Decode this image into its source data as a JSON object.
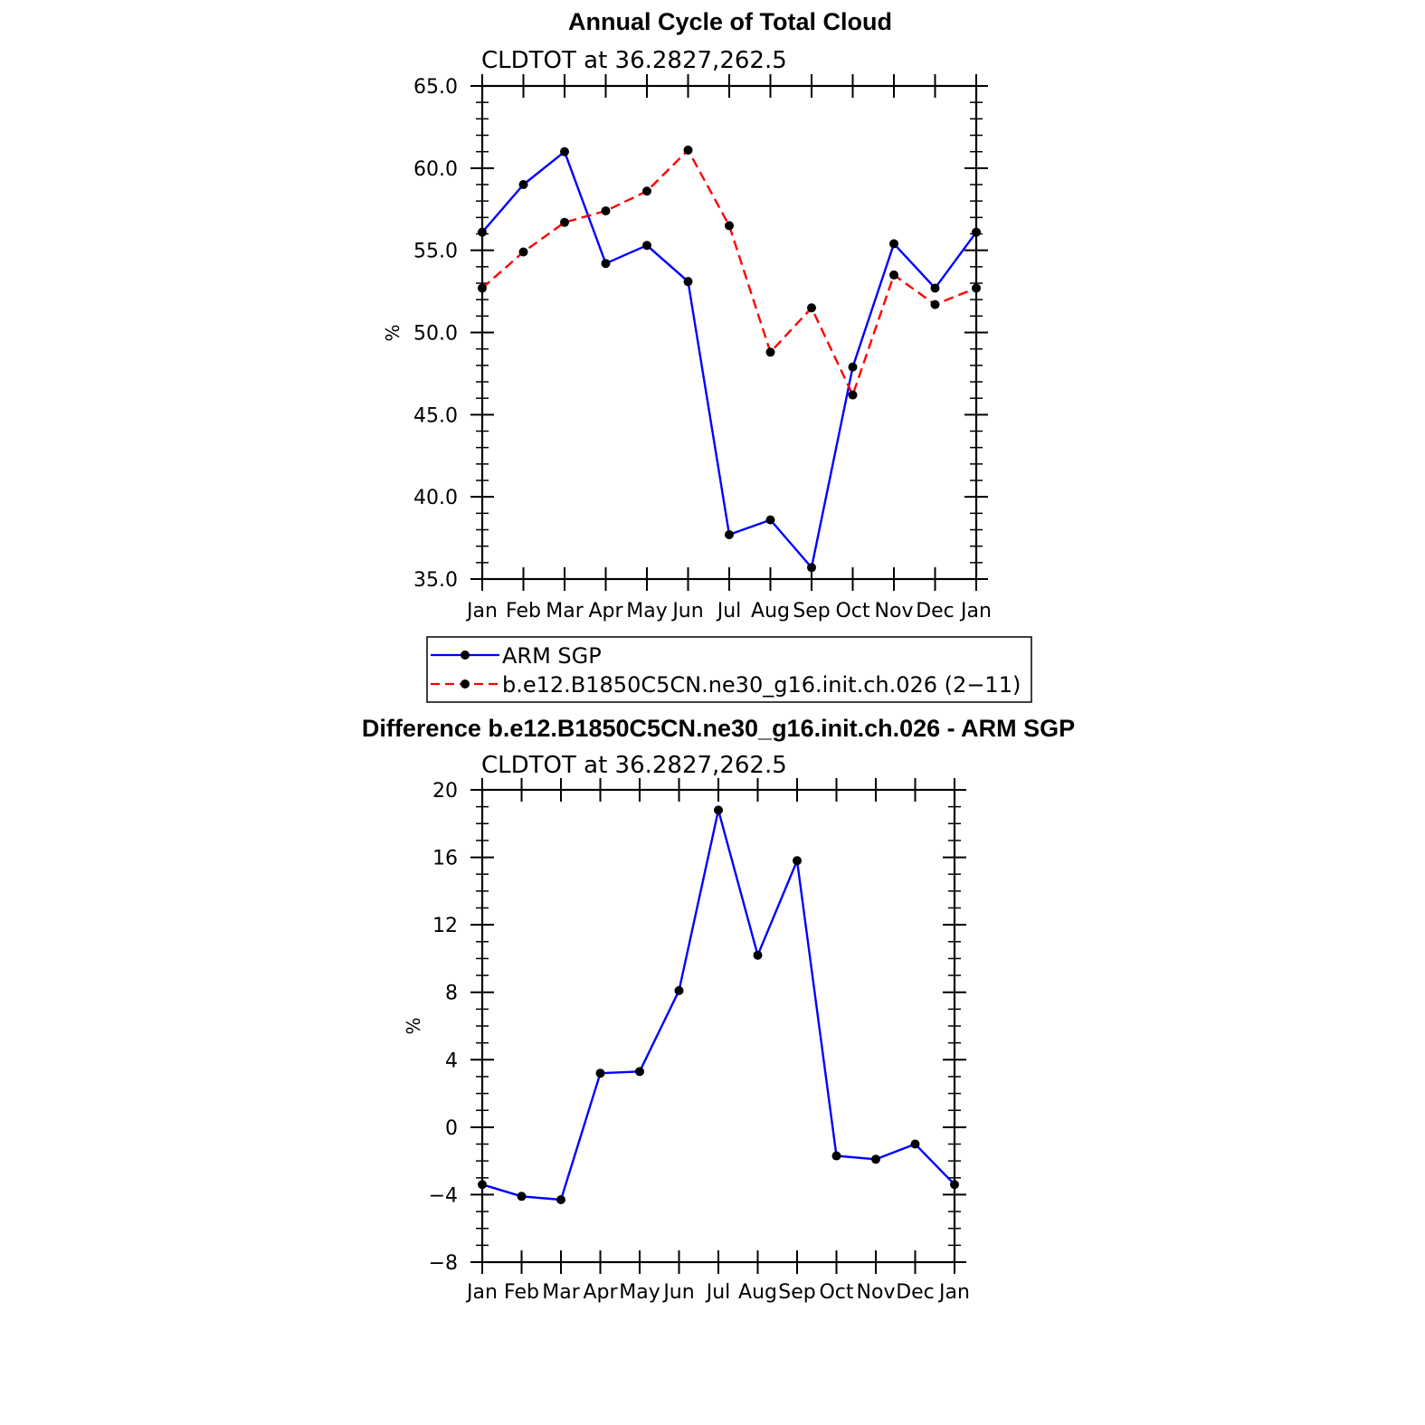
{
  "chart_data": [
    {
      "type": "line",
      "title": "Annual Cycle of Total Cloud",
      "subtitle": "CLDTOT at 36.2827,262.5",
      "ylabel": "%",
      "xlabel": "",
      "ylim": [
        35.0,
        65.0
      ],
      "yticks": [
        "35.0",
        "40.0",
        "45.0",
        "50.0",
        "55.0",
        "60.0",
        "65.0"
      ],
      "categories": [
        "Jan",
        "Feb",
        "Mar",
        "Apr",
        "May",
        "Jun",
        "Jul",
        "Aug",
        "Sep",
        "Oct",
        "Nov",
        "Dec",
        "Jan"
      ],
      "series": [
        {
          "name": "ARM SGP",
          "color": "#0000ff",
          "dash": "solid",
          "values": [
            56.1,
            59.0,
            61.0,
            54.2,
            55.3,
            53.1,
            37.7,
            38.6,
            35.7,
            47.9,
            55.4,
            52.7,
            56.1
          ]
        },
        {
          "name": "b.e12.B1850C5CN.ne30_g16.init.ch.026 (2−11)",
          "color": "#ff0000",
          "dash": "dashed",
          "values": [
            52.7,
            54.9,
            56.7,
            57.4,
            58.6,
            61.1,
            56.5,
            48.8,
            51.5,
            46.2,
            53.5,
            51.7,
            52.7
          ]
        }
      ]
    },
    {
      "type": "line",
      "title": "Difference b.e12.B1850C5CN.ne30_g16.init.ch.026 - ARM SGP",
      "subtitle": "CLDTOT at 36.2827,262.5",
      "ylabel": "%",
      "xlabel": "",
      "ylim": [
        -8,
        20
      ],
      "yticks": [
        "−8",
        "−4",
        "0",
        "4",
        "8",
        "12",
        "16",
        "20"
      ],
      "categories": [
        "Jan",
        "Feb",
        "Mar",
        "Apr",
        "May",
        "Jun",
        "Jul",
        "Aug",
        "Sep",
        "Oct",
        "Nov",
        "Dec",
        "Jan"
      ],
      "series": [
        {
          "name": "Difference",
          "color": "#0000ff",
          "dash": "solid",
          "values": [
            -3.4,
            -4.1,
            -4.3,
            3.2,
            3.3,
            8.1,
            18.8,
            10.2,
            15.8,
            -1.7,
            -1.9,
            -1.0,
            -3.4
          ]
        }
      ]
    }
  ]
}
